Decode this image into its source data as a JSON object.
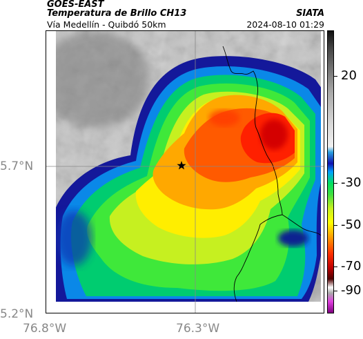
{
  "header": {
    "source": "GOES-EAST",
    "product": "Temperatura de Brillo CH13",
    "organization": "SIATA",
    "location": "Vía Medellín - Quibdó 50km",
    "datetime": "2024-08-10 01:29"
  },
  "map": {
    "lat_labels": [
      "5.7°N",
      "5.2°N"
    ],
    "lon_labels": [
      "76.8°W",
      "76.3°W"
    ],
    "marker_icon": "star-icon",
    "marker_color": "#000000",
    "gridline_color": "#888888"
  },
  "colorbar": {
    "labels": [
      "20",
      "-30",
      "-50",
      "-70",
      "-90"
    ],
    "colors": [
      "#111111",
      "#777777",
      "#f0f0f0",
      "#1010b0",
      "#00e060",
      "#ffff00",
      "#ff3000",
      "#500000",
      "#e040e0",
      "#800080"
    ]
  }
}
